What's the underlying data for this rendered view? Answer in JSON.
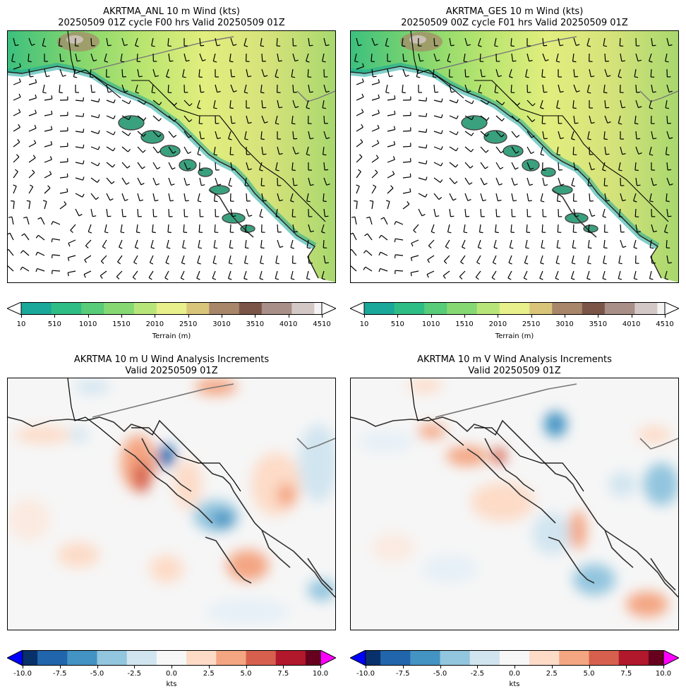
{
  "panels": {
    "anl": {
      "title": "AKRTMA_ANL 10 m Wind (kts)",
      "subtitle": "20250509 01Z cycle F00 hrs Valid 20250509 01Z"
    },
    "ges": {
      "title": "AKRTMA_GES 10 m Wind (kts)",
      "subtitle": "20250509 00Z cycle F01 hrs Valid 20250509 01Z"
    },
    "u_inc": {
      "title": "AKRTMA 10 m U Wind Analysis Increments",
      "subtitle": "Valid 20250509 01Z"
    },
    "v_inc": {
      "title": "AKRTMA 10 m V Wind Analysis Increments",
      "subtitle": "Valid 20250509 01Z"
    }
  },
  "terrain_colorbar": {
    "label": "Terrain (m)",
    "ticks": [
      "10",
      "510",
      "1010",
      "1510",
      "2010",
      "2510",
      "3010",
      "3510",
      "4010",
      "4510"
    ],
    "colors": [
      "#19a89a",
      "#2fbd86",
      "#58cc78",
      "#86d873",
      "#b8e57a",
      "#e7f08a",
      "#d8c57a",
      "#a8866a",
      "#7b5548",
      "#a88f88",
      "#d4c8c6",
      "#f4f2f2"
    ]
  },
  "increment_colorbar": {
    "label": "kts",
    "ticks": [
      "-10.0",
      "-7.5",
      "-5.0",
      "-2.5",
      "0.0",
      "2.5",
      "5.0",
      "7.5",
      "10.0"
    ],
    "under_color": "#0000ff",
    "over_color": "#ff00ff",
    "colors": [
      "#08306b",
      "#2166ac",
      "#4393c3",
      "#92c5de",
      "#d1e5f0",
      "#f7f7f7",
      "#fddbc7",
      "#f4a582",
      "#d6604d",
      "#b2182b",
      "#67001f"
    ]
  }
}
